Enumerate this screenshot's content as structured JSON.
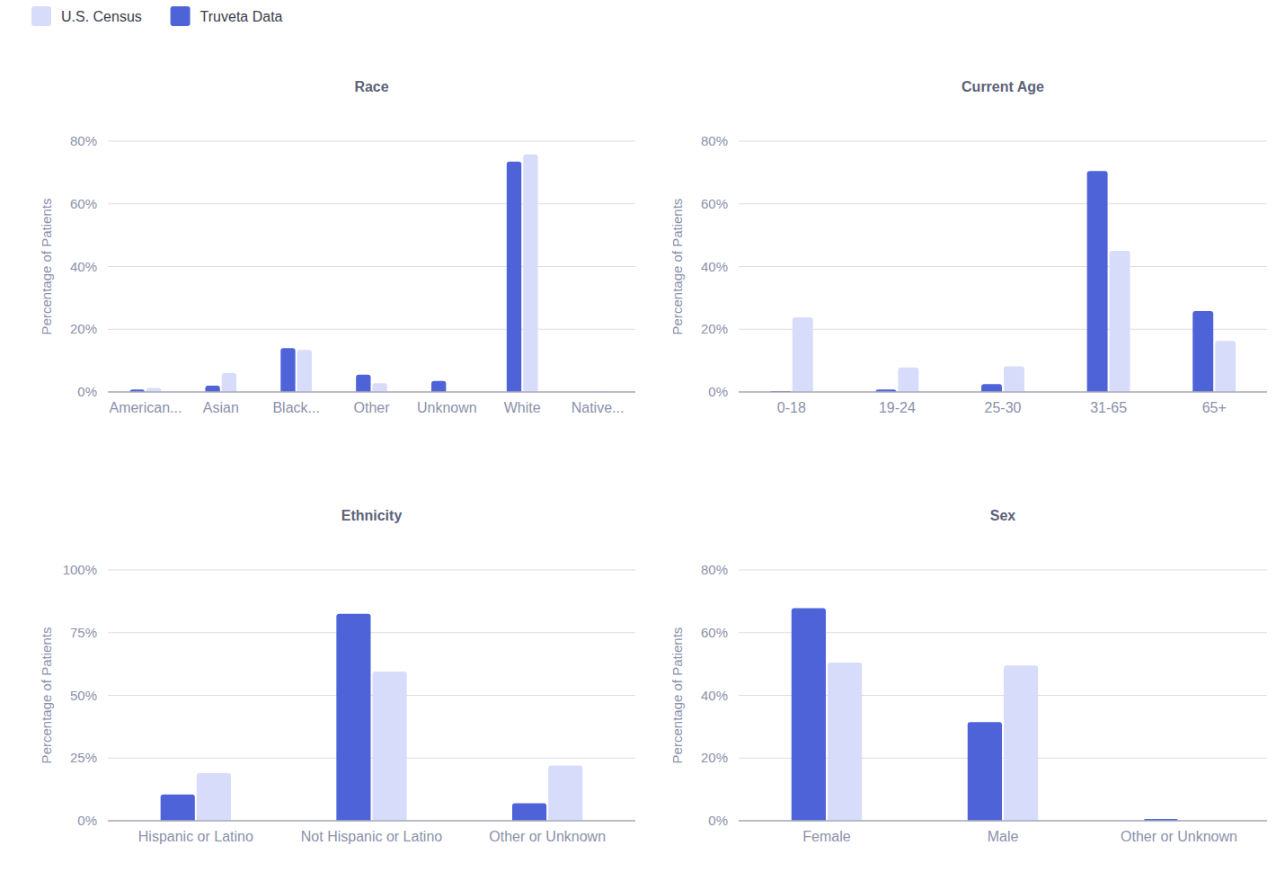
{
  "chart_data": [
    {
      "type": "bar",
      "title": "Race",
      "y_label": "Percentage of Patients",
      "categories": [
        "American...",
        "Asian",
        "Black...",
        "Other",
        "Unknown",
        "White",
        "Native..."
      ],
      "series": [
        {
          "name": "Truveta Data",
          "color": "#4f63d8",
          "values": [
            0.8,
            2,
            14,
            5.5,
            3.5,
            73.5,
            0
          ]
        },
        {
          "name": "U.S. Census",
          "color": "#d7dcfa",
          "values": [
            1.3,
            6,
            13.4,
            2.8,
            0,
            75.8,
            0.2
          ]
        }
      ],
      "ylim": [
        0,
        80
      ],
      "yticks": [
        {
          "value": 0,
          "label": "0%"
        },
        {
          "value": 20,
          "label": "20%"
        },
        {
          "value": 40,
          "label": "40%"
        },
        {
          "value": 60,
          "label": "60%"
        },
        {
          "value": 80,
          "label": "80%"
        }
      ],
      "grid": true,
      "legend": "top-left"
    },
    {
      "type": "bar",
      "title": "Current Age",
      "y_label": "Percentage of Patients",
      "categories": [
        "0-18",
        "19-24",
        "25-30",
        "31-65",
        "65+"
      ],
      "series": [
        {
          "name": "Truveta Data",
          "color": "#4f63d8",
          "values": [
            0.3,
            0.8,
            2.5,
            70.5,
            25.8
          ]
        },
        {
          "name": "U.S. Census",
          "color": "#d7dcfa",
          "values": [
            23.8,
            7.8,
            8.2,
            45,
            16.3
          ]
        }
      ],
      "ylim": [
        0,
        80
      ],
      "yticks": [
        {
          "value": 0,
          "label": "0%"
        },
        {
          "value": 20,
          "label": "20%"
        },
        {
          "value": 40,
          "label": "40%"
        },
        {
          "value": 60,
          "label": "60%"
        },
        {
          "value": 80,
          "label": "80%"
        }
      ],
      "grid": true
    },
    {
      "type": "bar",
      "title": "Ethnicity",
      "y_label": "Percentage of Patients",
      "categories": [
        "Hispanic or Latino",
        "Not Hispanic or Latino",
        "Other or Unknown"
      ],
      "series": [
        {
          "name": "Truveta Data",
          "color": "#4f63d8",
          "values": [
            10.5,
            82.5,
            7
          ]
        },
        {
          "name": "U.S. Census",
          "color": "#d7dcfa",
          "values": [
            19,
            59.5,
            22
          ]
        }
      ],
      "ylim": [
        0,
        100
      ],
      "yticks": [
        {
          "value": 0,
          "label": "0%"
        },
        {
          "value": 25,
          "label": "25%"
        },
        {
          "value": 50,
          "label": "50%"
        },
        {
          "value": 75,
          "label": "75%"
        },
        {
          "value": 100,
          "label": "100%"
        }
      ],
      "grid": true
    },
    {
      "type": "bar",
      "title": "Sex",
      "y_label": "Percentage of Patients",
      "categories": [
        "Female",
        "Male",
        "Other or Unknown"
      ],
      "series": [
        {
          "name": "Truveta Data",
          "color": "#4f63d8",
          "values": [
            67.8,
            31.5,
            0.6
          ]
        },
        {
          "name": "U.S. Census",
          "color": "#d7dcfa",
          "values": [
            50.5,
            49.5,
            0
          ]
        }
      ],
      "ylim": [
        0,
        80
      ],
      "yticks": [
        {
          "value": 0,
          "label": "0%"
        },
        {
          "value": 20,
          "label": "20%"
        },
        {
          "value": 40,
          "label": "40%"
        },
        {
          "value": 60,
          "label": "60%"
        },
        {
          "value": 80,
          "label": "80%"
        }
      ],
      "grid": true
    }
  ]
}
